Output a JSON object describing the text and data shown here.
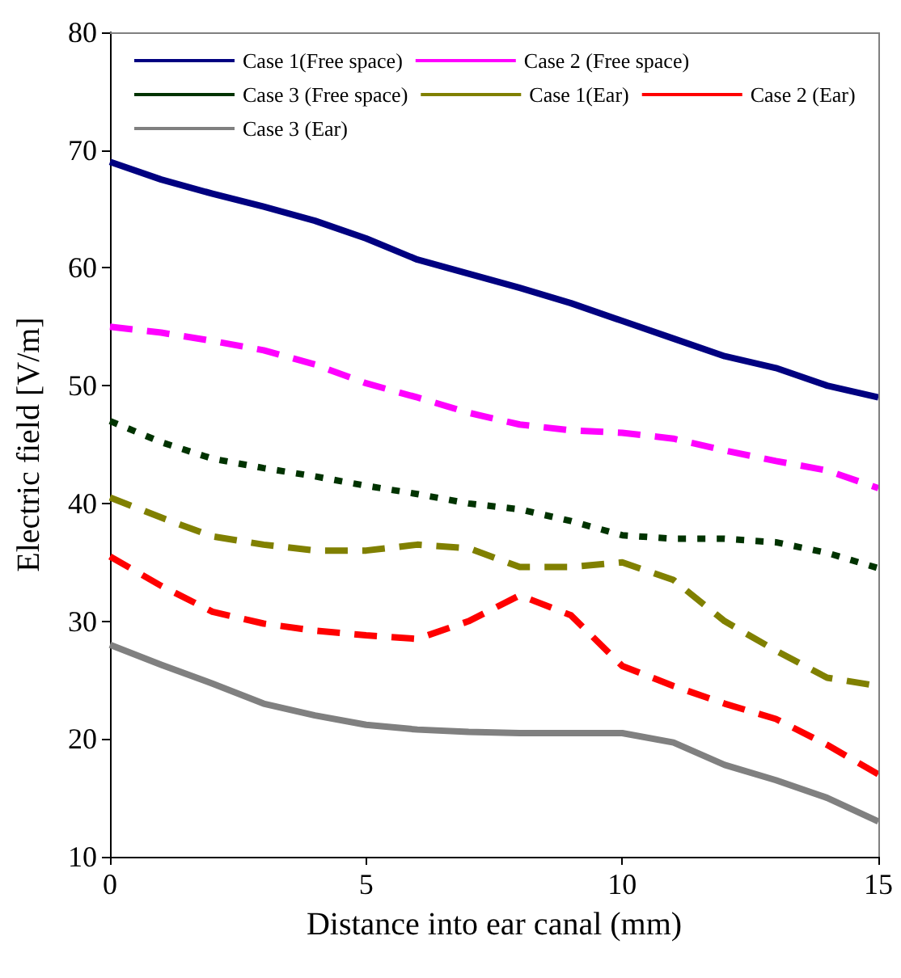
{
  "chart_data": {
    "type": "line",
    "xlabel": "Distance into ear canal (mm)",
    "ylabel": "Electric field [V/m]",
    "x": [
      0,
      1,
      2,
      3,
      4,
      5,
      6,
      7,
      8,
      9,
      10,
      11,
      12,
      13,
      14,
      15
    ],
    "xlim": [
      0,
      15
    ],
    "xticks": [
      0,
      5,
      10,
      15
    ],
    "ylim": [
      10,
      80
    ],
    "yticks": [
      10,
      20,
      30,
      40,
      50,
      60,
      70,
      80
    ],
    "grid": false,
    "legend": "top",
    "marker": "none",
    "series": [
      {
        "name": "Case 1(Free space)",
        "color": "#000080",
        "line_style": "solid",
        "values": [
          69,
          67.5,
          66.3,
          65.2,
          64,
          62.5,
          60.7,
          59.5,
          58.3,
          57,
          55.5,
          54,
          52.5,
          51.5,
          50,
          49
        ]
      },
      {
        "name": "Case 2 (Free space)",
        "color": "#ff00ff",
        "line_style": "dashed",
        "values": [
          55,
          54.5,
          53.8,
          53,
          51.8,
          50.2,
          49,
          47.7,
          46.7,
          46.2,
          46,
          45.5,
          44.5,
          43.6,
          42.8,
          41.3
        ]
      },
      {
        "name": "Case 3 (Free space)",
        "color": "#003300",
        "line_style": "dotted",
        "values": [
          47,
          45.2,
          43.8,
          43,
          42.3,
          41.5,
          40.8,
          40,
          39.5,
          38.5,
          37.3,
          37,
          37,
          36.7,
          35.8,
          34.5
        ]
      },
      {
        "name": "Case 1(Ear)",
        "color": "#808000",
        "line_style": "dashed",
        "values": [
          40.5,
          38.8,
          37.2,
          36.5,
          36,
          36,
          36.5,
          36.2,
          34.6,
          34.6,
          35,
          33.5,
          30,
          27.5,
          25.2,
          24.5
        ]
      },
      {
        "name": "Case 2 (Ear)",
        "color": "#ff0000",
        "line_style": "dashed",
        "values": [
          35.5,
          33,
          30.8,
          29.8,
          29.2,
          28.8,
          28.5,
          30,
          32.2,
          30.5,
          26.2,
          24.5,
          23,
          21.7,
          19.5,
          17
        ]
      },
      {
        "name": "Case 3 (Ear)",
        "color": "#808080",
        "line_style": "solid",
        "values": [
          28,
          26.3,
          24.7,
          23,
          22,
          21.2,
          20.8,
          20.6,
          20.5,
          20.5,
          20.5,
          19.7,
          17.8,
          16.5,
          15,
          13
        ]
      }
    ]
  }
}
